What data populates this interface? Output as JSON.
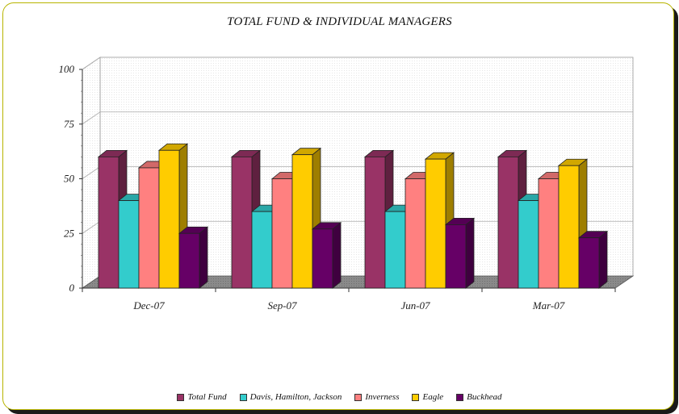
{
  "chart_data": {
    "type": "bar",
    "title": "TOTAL FUND & INDIVIDUAL MANAGERS",
    "categories": [
      "Dec-07",
      "Sep-07",
      "Jun-07",
      "Mar-07"
    ],
    "series": [
      {
        "name": "Total Fund",
        "color": "#993366",
        "values": [
          60,
          60,
          60,
          60
        ]
      },
      {
        "name": "Davis, Hamilton, Jackson",
        "color": "#33CCCC",
        "values": [
          40,
          35,
          35,
          40
        ]
      },
      {
        "name": "Inverness",
        "color": "#FF8080",
        "values": [
          55,
          50,
          50,
          50
        ]
      },
      {
        "name": "Eagle",
        "color": "#FFCC00",
        "values": [
          63,
          61,
          59,
          56
        ]
      },
      {
        "name": "Buckhead",
        "color": "#660066",
        "values": [
          25,
          27,
          29,
          23
        ]
      }
    ],
    "yticks": [
      0,
      25,
      50,
      75,
      100
    ],
    "ylim": [
      0,
      100
    ],
    "gridlines": true,
    "legend_position": "bottom"
  }
}
